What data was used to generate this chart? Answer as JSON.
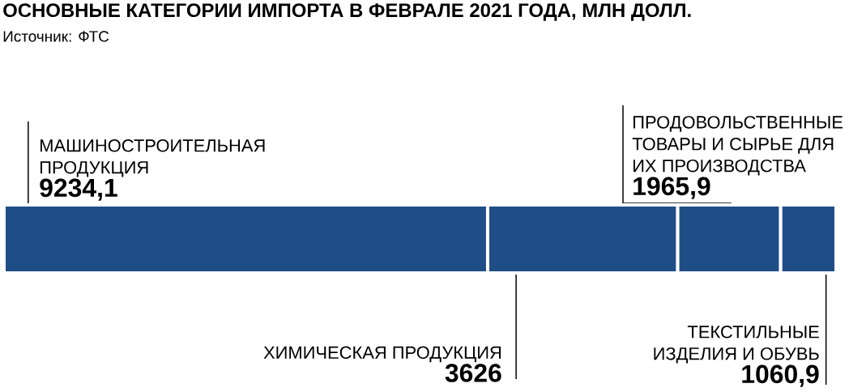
{
  "chart_data": {
    "type": "bar",
    "orientation": "horizontal",
    "stacked": true,
    "title": "ОСНОВНЫЕ КАТЕГОРИИ ИМПОРТА В ФЕВРАЛЕ 2021 ГОДА, МЛН ДОЛЛ.",
    "annotations": [
      "Источник: ФТС"
    ],
    "categories": [
      null
    ],
    "series": [
      {
        "name": "МАШИНОСТРОИТЕЛЬНАЯ ПРОДУКЦИЯ",
        "color": "#1f4e87",
        "values": [
          9234.1
        ],
        "value_labels": [
          "9234,1"
        ]
      },
      {
        "name": "ХИМИЧЕСКАЯ ПРОДУКЦИЯ",
        "color": "#1f4e87",
        "values": [
          3626
        ],
        "value_labels": [
          "3626"
        ]
      },
      {
        "name": "ПРОДОВОЛЬСТВЕННЫЕ ТОВАРЫ И СЫРЬЕ ДЛЯ ИХ ПРОИЗВОДСТВА",
        "color": "#1f4e87",
        "values": [
          1965.9
        ],
        "value_labels": [
          "1965,9"
        ]
      },
      {
        "name": "ТЕКСТИЛЬНЫЕ ИЗДЕЛИЯ И ОБУВЬ",
        "color": "#1f4e87",
        "values": [
          1060.9
        ],
        "value_labels": [
          "1060,9"
        ]
      }
    ]
  }
}
